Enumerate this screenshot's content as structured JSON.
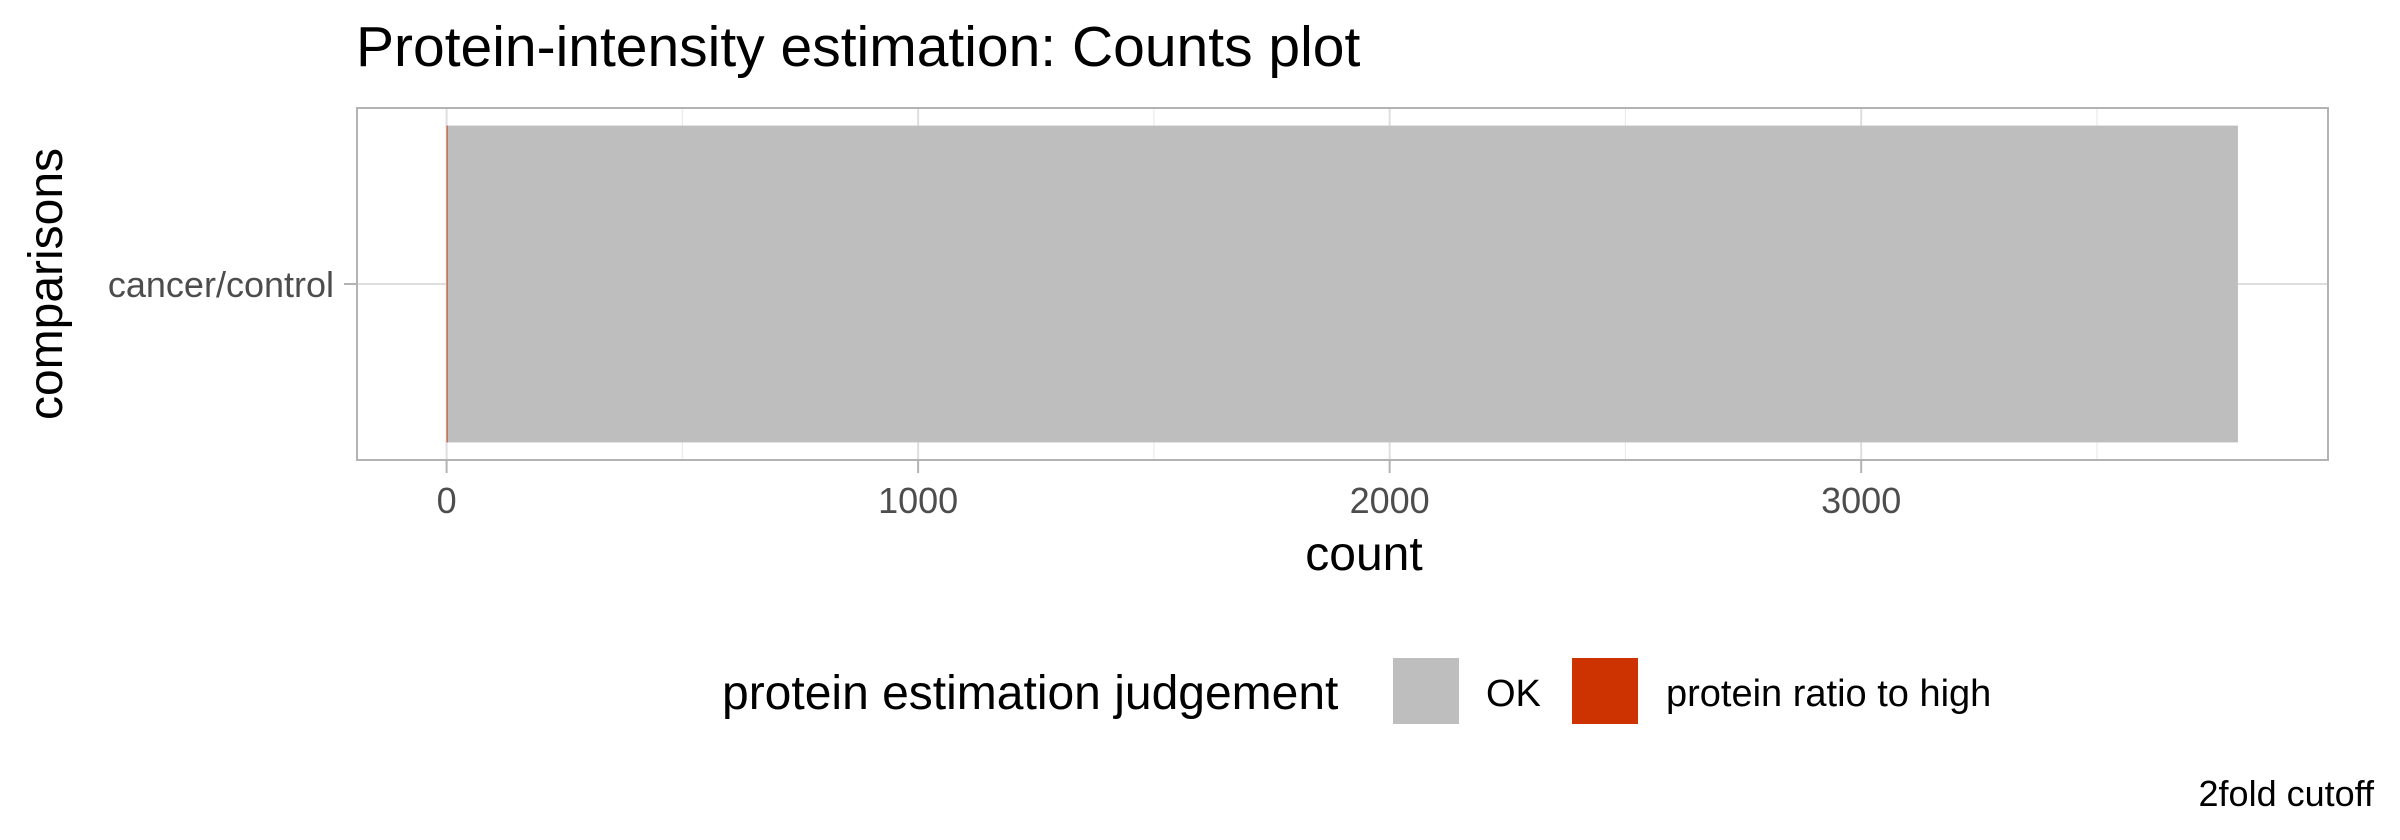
{
  "chart_data": {
    "type": "bar",
    "orientation": "horizontal",
    "stacked": true,
    "title": "Protein-intensity estimation: Counts plot",
    "xlabel": "count",
    "ylabel": "comparisons",
    "categories": [
      "cancer/control"
    ],
    "series": [
      {
        "name": "protein ratio to high",
        "values": [
          2
        ],
        "color": "#cc3300"
      },
      {
        "name": "OK",
        "values": [
          3797
        ],
        "color": "#bebebe"
      }
    ],
    "x_ticks": [
      0,
      1000,
      2000,
      3000
    ],
    "x_tick_labels": [
      "0",
      "1000",
      "2000",
      "3000"
    ],
    "xlim": [
      -190,
      3990
    ],
    "grid": true,
    "legend": {
      "title": "protein estimation judgement",
      "position": "bottom",
      "entries": [
        {
          "label": "OK",
          "color": "#bebebe"
        },
        {
          "label": "protein ratio to high",
          "color": "#cc3300"
        }
      ]
    },
    "caption": "2fold cutoff"
  }
}
